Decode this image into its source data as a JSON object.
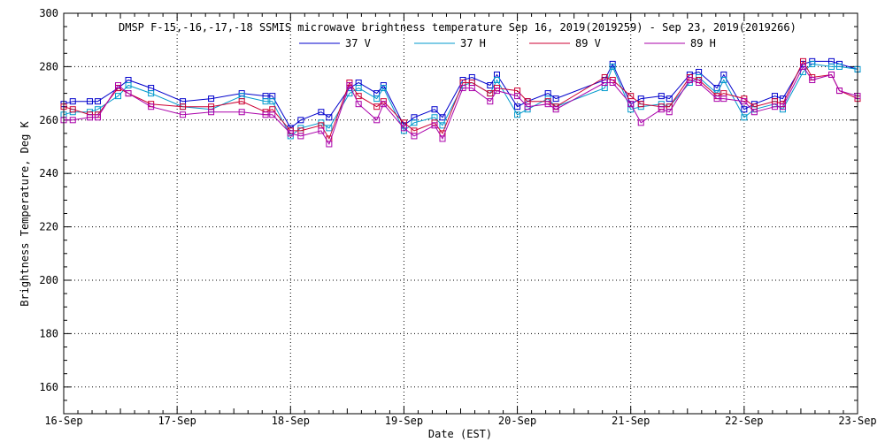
{
  "chart_data": {
    "type": "line",
    "title": "DMSP F-15,-16,-17,-18 SSMIS microwave brightness temperature Sep 16, 2019(2019259) - Sep 23, 2019(2019266)",
    "xlabel": "Date (EST)",
    "ylabel": "Brightness Temperature, Deg K",
    "xlim": [
      0,
      7
    ],
    "ylim": [
      150,
      300
    ],
    "grid": true,
    "legend_position": "top",
    "x_tick_labels": [
      "16-Sep",
      "17-Sep",
      "18-Sep",
      "19-Sep",
      "20-Sep",
      "21-Sep",
      "22-Sep",
      "23-Sep"
    ],
    "y_ticks": [
      160,
      180,
      200,
      220,
      240,
      260,
      280,
      300
    ],
    "x_unit": "days since 16-Sep 00:00",
    "series": [
      {
        "name": "37 V",
        "color": "#0000cc",
        "points": [
          [
            0.0,
            266
          ],
          [
            0.08,
            267
          ],
          [
            0.23,
            267
          ],
          [
            0.3,
            267
          ],
          [
            0.48,
            272
          ],
          [
            0.57,
            275
          ],
          [
            0.77,
            272
          ],
          [
            1.05,
            267
          ],
          [
            1.3,
            268
          ],
          [
            1.57,
            270
          ],
          [
            1.78,
            269
          ],
          [
            1.84,
            269
          ],
          [
            2.0,
            257
          ],
          [
            2.09,
            260
          ],
          [
            2.27,
            263
          ],
          [
            2.34,
            261
          ],
          [
            2.52,
            272
          ],
          [
            2.6,
            274
          ],
          [
            2.76,
            270
          ],
          [
            2.82,
            273
          ],
          [
            3.0,
            258
          ],
          [
            3.09,
            261
          ],
          [
            3.27,
            264
          ],
          [
            3.34,
            261
          ],
          [
            3.52,
            275
          ],
          [
            3.6,
            276
          ],
          [
            3.76,
            273
          ],
          [
            3.82,
            277
          ],
          [
            4.0,
            265
          ],
          [
            4.09,
            267
          ],
          [
            4.27,
            270
          ],
          [
            4.34,
            268
          ],
          [
            4.77,
            275
          ],
          [
            4.84,
            281
          ],
          [
            5.0,
            266
          ],
          [
            5.09,
            268
          ],
          [
            5.27,
            269
          ],
          [
            5.34,
            268
          ],
          [
            5.52,
            277
          ],
          [
            5.6,
            278
          ],
          [
            5.76,
            272
          ],
          [
            5.82,
            277
          ],
          [
            6.0,
            264
          ],
          [
            6.09,
            266
          ],
          [
            6.27,
            269
          ],
          [
            6.34,
            268
          ],
          [
            6.52,
            281
          ],
          [
            6.6,
            282
          ],
          [
            6.77,
            282
          ],
          [
            6.84,
            281
          ],
          [
            7.0,
            279
          ]
        ]
      },
      {
        "name": "37 H",
        "color": "#0099cc",
        "points": [
          [
            0.0,
            262
          ],
          [
            0.08,
            263
          ],
          [
            0.23,
            263
          ],
          [
            0.3,
            264
          ],
          [
            0.48,
            269
          ],
          [
            0.57,
            273
          ],
          [
            0.77,
            270
          ],
          [
            1.05,
            265
          ],
          [
            1.3,
            264
          ],
          [
            1.57,
            269
          ],
          [
            1.78,
            267
          ],
          [
            1.84,
            267
          ],
          [
            2.0,
            254
          ],
          [
            2.09,
            257
          ],
          [
            2.27,
            259
          ],
          [
            2.34,
            257
          ],
          [
            2.52,
            270
          ],
          [
            2.6,
            272
          ],
          [
            2.76,
            268
          ],
          [
            2.82,
            272
          ],
          [
            3.0,
            256
          ],
          [
            3.09,
            259
          ],
          [
            3.27,
            261
          ],
          [
            3.34,
            258
          ],
          [
            3.52,
            273
          ],
          [
            3.6,
            274
          ],
          [
            3.76,
            270
          ],
          [
            3.82,
            275
          ],
          [
            4.0,
            262
          ],
          [
            4.09,
            264
          ],
          [
            4.27,
            268
          ],
          [
            4.34,
            265
          ],
          [
            4.77,
            272
          ],
          [
            4.84,
            280
          ],
          [
            5.0,
            264
          ],
          [
            5.09,
            265
          ],
          [
            5.27,
            266
          ],
          [
            5.34,
            265
          ],
          [
            5.52,
            274
          ],
          [
            5.6,
            276
          ],
          [
            5.76,
            270
          ],
          [
            5.82,
            275
          ],
          [
            6.0,
            261
          ],
          [
            6.09,
            264
          ],
          [
            6.27,
            266
          ],
          [
            6.34,
            264
          ],
          [
            6.52,
            278
          ],
          [
            6.6,
            281
          ],
          [
            6.77,
            280
          ],
          [
            6.84,
            280
          ],
          [
            7.0,
            279
          ]
        ]
      },
      {
        "name": "89 V",
        "color": "#cc0033",
        "points": [
          [
            0.0,
            265
          ],
          [
            0.08,
            264
          ],
          [
            0.23,
            262
          ],
          [
            0.3,
            262
          ],
          [
            0.48,
            272
          ],
          [
            0.57,
            270
          ],
          [
            0.77,
            266
          ],
          [
            1.05,
            265
          ],
          [
            1.3,
            265
          ],
          [
            1.57,
            267
          ],
          [
            1.78,
            263
          ],
          [
            1.84,
            264
          ],
          [
            2.0,
            256
          ],
          [
            2.09,
            256
          ],
          [
            2.27,
            258
          ],
          [
            2.34,
            253
          ],
          [
            2.52,
            274
          ],
          [
            2.6,
            269
          ],
          [
            2.76,
            265
          ],
          [
            2.82,
            267
          ],
          [
            3.0,
            259
          ],
          [
            3.09,
            256
          ],
          [
            3.27,
            259
          ],
          [
            3.34,
            255
          ],
          [
            3.52,
            274
          ],
          [
            3.6,
            274
          ],
          [
            3.76,
            270
          ],
          [
            3.82,
            272
          ],
          [
            4.0,
            271
          ],
          [
            4.09,
            267
          ],
          [
            4.27,
            267
          ],
          [
            4.34,
            265
          ],
          [
            4.77,
            276
          ],
          [
            4.84,
            275
          ],
          [
            5.0,
            269
          ],
          [
            5.09,
            266
          ],
          [
            5.27,
            265
          ],
          [
            5.34,
            265
          ],
          [
            5.52,
            276
          ],
          [
            5.6,
            275
          ],
          [
            5.76,
            269
          ],
          [
            5.82,
            270
          ],
          [
            6.0,
            268
          ],
          [
            6.09,
            265
          ],
          [
            6.27,
            267
          ],
          [
            6.34,
            266
          ],
          [
            6.52,
            282
          ],
          [
            6.6,
            276
          ],
          [
            6.77,
            277
          ],
          [
            6.84,
            271
          ],
          [
            7.0,
            268
          ]
        ]
      },
      {
        "name": "89 H",
        "color": "#aa00aa",
        "points": [
          [
            0.0,
            260
          ],
          [
            0.08,
            260
          ],
          [
            0.23,
            261
          ],
          [
            0.3,
            261
          ],
          [
            0.48,
            273
          ],
          [
            0.57,
            270
          ],
          [
            0.77,
            265
          ],
          [
            1.05,
            262
          ],
          [
            1.3,
            263
          ],
          [
            1.57,
            263
          ],
          [
            1.78,
            262
          ],
          [
            1.84,
            262
          ],
          [
            2.0,
            255
          ],
          [
            2.09,
            254
          ],
          [
            2.27,
            256
          ],
          [
            2.34,
            251
          ],
          [
            2.52,
            273
          ],
          [
            2.6,
            266
          ],
          [
            2.76,
            260
          ],
          [
            2.82,
            266
          ],
          [
            3.0,
            257
          ],
          [
            3.09,
            254
          ],
          [
            3.27,
            258
          ],
          [
            3.34,
            253
          ],
          [
            3.52,
            272
          ],
          [
            3.6,
            272
          ],
          [
            3.76,
            267
          ],
          [
            3.82,
            271
          ],
          [
            4.0,
            269
          ],
          [
            4.09,
            265
          ],
          [
            4.27,
            266
          ],
          [
            4.34,
            264
          ],
          [
            4.77,
            274
          ],
          [
            4.84,
            274
          ],
          [
            5.0,
            266
          ],
          [
            5.09,
            259
          ],
          [
            5.27,
            264
          ],
          [
            5.34,
            263
          ],
          [
            5.52,
            275
          ],
          [
            5.6,
            274
          ],
          [
            5.76,
            268
          ],
          [
            5.82,
            268
          ],
          [
            6.0,
            267
          ],
          [
            6.09,
            263
          ],
          [
            6.27,
            265
          ],
          [
            6.34,
            265
          ],
          [
            6.52,
            280
          ],
          [
            6.6,
            275
          ],
          [
            6.77,
            277
          ],
          [
            6.84,
            271
          ],
          [
            7.0,
            269
          ]
        ]
      }
    ]
  }
}
